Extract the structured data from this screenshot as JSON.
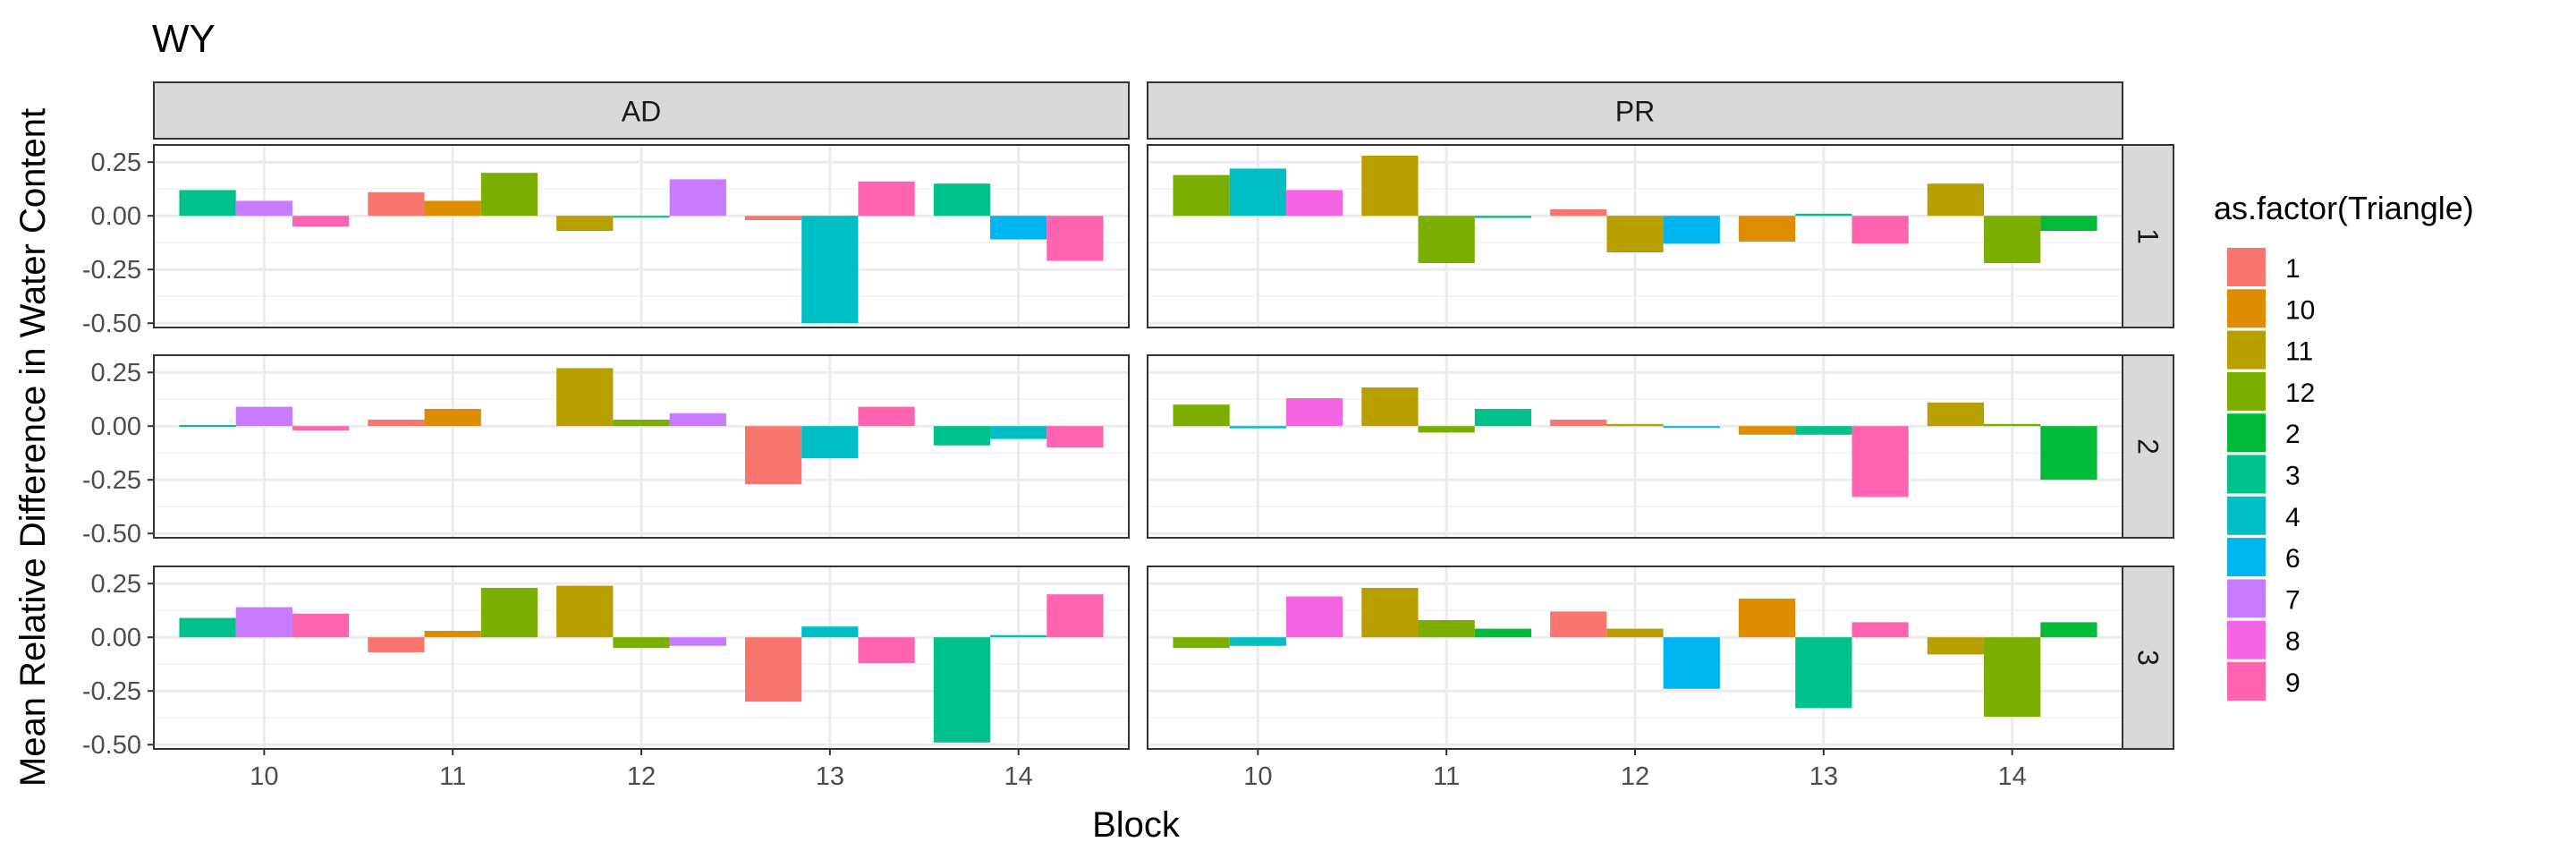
{
  "chart_data": {
    "type": "bar",
    "title": "WY",
    "xlabel": "Block",
    "ylabel": "Mean Relative Difference in Water Content",
    "ylim": [
      -0.52,
      0.33
    ],
    "yticks": [
      0.25,
      0.0,
      -0.25,
      -0.5
    ],
    "ytick_labels": [
      "0.25",
      "0.00",
      "-0.25",
      "-0.50"
    ],
    "x_categories": [
      "10",
      "11",
      "12",
      "13",
      "14"
    ],
    "col_facets": [
      "AD",
      "PR"
    ],
    "row_facets": [
      "1",
      "2",
      "3"
    ],
    "grid": true,
    "legend_position": "right",
    "legend": {
      "title": "as.factor(Triangle)",
      "items": [
        {
          "label": "1",
          "color": "#F8766D"
        },
        {
          "label": "10",
          "color": "#DE8C00"
        },
        {
          "label": "11",
          "color": "#B79F00"
        },
        {
          "label": "12",
          "color": "#7CAE00"
        },
        {
          "label": "2",
          "color": "#00BA38"
        },
        {
          "label": "3",
          "color": "#00C08B"
        },
        {
          "label": "4",
          "color": "#00BFC4"
        },
        {
          "label": "6",
          "color": "#00B4F0"
        },
        {
          "label": "7",
          "color": "#C77CFF"
        },
        {
          "label": "8",
          "color": "#F564E3"
        },
        {
          "label": "9",
          "color": "#FF64B0"
        }
      ]
    },
    "panels": [
      {
        "col": "AD",
        "row": "1",
        "blocks": [
          {
            "block": "10",
            "bars": [
              {
                "triangle": "3",
                "value": 0.12
              },
              {
                "triangle": "7",
                "value": 0.07
              },
              {
                "triangle": "9",
                "value": -0.05
              }
            ]
          },
          {
            "block": "11",
            "bars": [
              {
                "triangle": "1",
                "value": 0.11
              },
              {
                "triangle": "10",
                "value": 0.07
              },
              {
                "triangle": "12",
                "value": 0.2
              }
            ]
          },
          {
            "block": "12",
            "bars": [
              {
                "triangle": "11",
                "value": -0.07
              },
              {
                "triangle": "3",
                "value": -0.005
              },
              {
                "triangle": "7",
                "value": 0.17
              }
            ]
          },
          {
            "block": "13",
            "bars": [
              {
                "triangle": "1",
                "value": -0.02
              },
              {
                "triangle": "4",
                "value": -0.5
              },
              {
                "triangle": "9",
                "value": 0.16
              }
            ]
          },
          {
            "block": "14",
            "bars": [
              {
                "triangle": "3",
                "value": 0.15
              },
              {
                "triangle": "6",
                "value": -0.11
              },
              {
                "triangle": "9",
                "value": -0.21
              }
            ]
          }
        ]
      },
      {
        "col": "PR",
        "row": "1",
        "blocks": [
          {
            "block": "10",
            "bars": [
              {
                "triangle": "12",
                "value": 0.19
              },
              {
                "triangle": "4",
                "value": 0.22
              },
              {
                "triangle": "8",
                "value": 0.12
              }
            ]
          },
          {
            "block": "11",
            "bars": [
              {
                "triangle": "11",
                "value": 0.28
              },
              {
                "triangle": "12",
                "value": -0.22
              },
              {
                "triangle": "3",
                "value": -0.01
              }
            ]
          },
          {
            "block": "12",
            "bars": [
              {
                "triangle": "1",
                "value": 0.03
              },
              {
                "triangle": "11",
                "value": -0.17
              },
              {
                "triangle": "6",
                "value": -0.13
              }
            ]
          },
          {
            "block": "13",
            "bars": [
              {
                "triangle": "10",
                "value": -0.12
              },
              {
                "triangle": "3",
                "value": 0.01
              },
              {
                "triangle": "9",
                "value": -0.13
              }
            ]
          },
          {
            "block": "14",
            "bars": [
              {
                "triangle": "11",
                "value": 0.15
              },
              {
                "triangle": "12",
                "value": -0.22
              },
              {
                "triangle": "2",
                "value": -0.07
              }
            ]
          }
        ]
      },
      {
        "col": "AD",
        "row": "2",
        "blocks": [
          {
            "block": "10",
            "bars": [
              {
                "triangle": "3",
                "value": 0.005
              },
              {
                "triangle": "7",
                "value": 0.09
              },
              {
                "triangle": "9",
                "value": -0.02
              }
            ]
          },
          {
            "block": "11",
            "bars": [
              {
                "triangle": "1",
                "value": 0.03
              },
              {
                "triangle": "10",
                "value": 0.08
              }
            ]
          },
          {
            "block": "12",
            "bars": [
              {
                "triangle": "11",
                "value": 0.27
              },
              {
                "triangle": "12",
                "value": 0.03
              },
              {
                "triangle": "7",
                "value": 0.06
              }
            ]
          },
          {
            "block": "13",
            "bars": [
              {
                "triangle": "1",
                "value": -0.27
              },
              {
                "triangle": "4",
                "value": -0.15
              },
              {
                "triangle": "9",
                "value": 0.09
              }
            ]
          },
          {
            "block": "14",
            "bars": [
              {
                "triangle": "3",
                "value": -0.09
              },
              {
                "triangle": "4",
                "value": -0.06
              },
              {
                "triangle": "9",
                "value": -0.1
              }
            ]
          }
        ]
      },
      {
        "col": "PR",
        "row": "2",
        "blocks": [
          {
            "block": "10",
            "bars": [
              {
                "triangle": "12",
                "value": 0.1
              },
              {
                "triangle": "4",
                "value": -0.01
              },
              {
                "triangle": "8",
                "value": 0.13
              }
            ]
          },
          {
            "block": "11",
            "bars": [
              {
                "triangle": "11",
                "value": 0.18
              },
              {
                "triangle": "12",
                "value": -0.03
              },
              {
                "triangle": "3",
                "value": 0.08
              }
            ]
          },
          {
            "block": "12",
            "bars": [
              {
                "triangle": "1",
                "value": 0.03
              },
              {
                "triangle": "11",
                "value": 0.01
              },
              {
                "triangle": "6",
                "value": -0.005
              }
            ]
          },
          {
            "block": "13",
            "bars": [
              {
                "triangle": "10",
                "value": -0.04
              },
              {
                "triangle": "3",
                "value": -0.04
              },
              {
                "triangle": "9",
                "value": -0.33
              }
            ]
          },
          {
            "block": "14",
            "bars": [
              {
                "triangle": "11",
                "value": 0.11
              },
              {
                "triangle": "12",
                "value": 0.01
              },
              {
                "triangle": "2",
                "value": -0.25
              }
            ]
          }
        ]
      },
      {
        "col": "AD",
        "row": "3",
        "blocks": [
          {
            "block": "10",
            "bars": [
              {
                "triangle": "3",
                "value": 0.09
              },
              {
                "triangle": "7",
                "value": 0.14
              },
              {
                "triangle": "9",
                "value": 0.11
              }
            ]
          },
          {
            "block": "11",
            "bars": [
              {
                "triangle": "1",
                "value": -0.07
              },
              {
                "triangle": "10",
                "value": 0.03
              },
              {
                "triangle": "12",
                "value": 0.23
              }
            ]
          },
          {
            "block": "12",
            "bars": [
              {
                "triangle": "11",
                "value": 0.24
              },
              {
                "triangle": "12",
                "value": -0.05
              },
              {
                "triangle": "7",
                "value": -0.04
              }
            ]
          },
          {
            "block": "13",
            "bars": [
              {
                "triangle": "1",
                "value": -0.3
              },
              {
                "triangle": "4",
                "value": 0.05
              },
              {
                "triangle": "9",
                "value": -0.12
              }
            ]
          },
          {
            "block": "14",
            "bars": [
              {
                "triangle": "3",
                "value": -0.49
              },
              {
                "triangle": "4",
                "value": 0.01
              },
              {
                "triangle": "9",
                "value": 0.2
              }
            ]
          }
        ]
      },
      {
        "col": "PR",
        "row": "3",
        "blocks": [
          {
            "block": "10",
            "bars": [
              {
                "triangle": "12",
                "value": -0.05
              },
              {
                "triangle": "4",
                "value": -0.04
              },
              {
                "triangle": "8",
                "value": 0.19
              }
            ]
          },
          {
            "block": "11",
            "bars": [
              {
                "triangle": "11",
                "value": 0.23
              },
              {
                "triangle": "12",
                "value": 0.08
              },
              {
                "triangle": "2",
                "value": 0.04
              }
            ]
          },
          {
            "block": "12",
            "bars": [
              {
                "triangle": "1",
                "value": 0.12
              },
              {
                "triangle": "11",
                "value": 0.04
              },
              {
                "triangle": "6",
                "value": -0.24
              }
            ]
          },
          {
            "block": "13",
            "bars": [
              {
                "triangle": "10",
                "value": 0.18
              },
              {
                "triangle": "3",
                "value": -0.33
              },
              {
                "triangle": "9",
                "value": 0.07
              }
            ]
          },
          {
            "block": "14",
            "bars": [
              {
                "triangle": "11",
                "value": -0.08
              },
              {
                "triangle": "12",
                "value": -0.37
              },
              {
                "triangle": "2",
                "value": 0.07
              }
            ]
          }
        ]
      }
    ]
  }
}
